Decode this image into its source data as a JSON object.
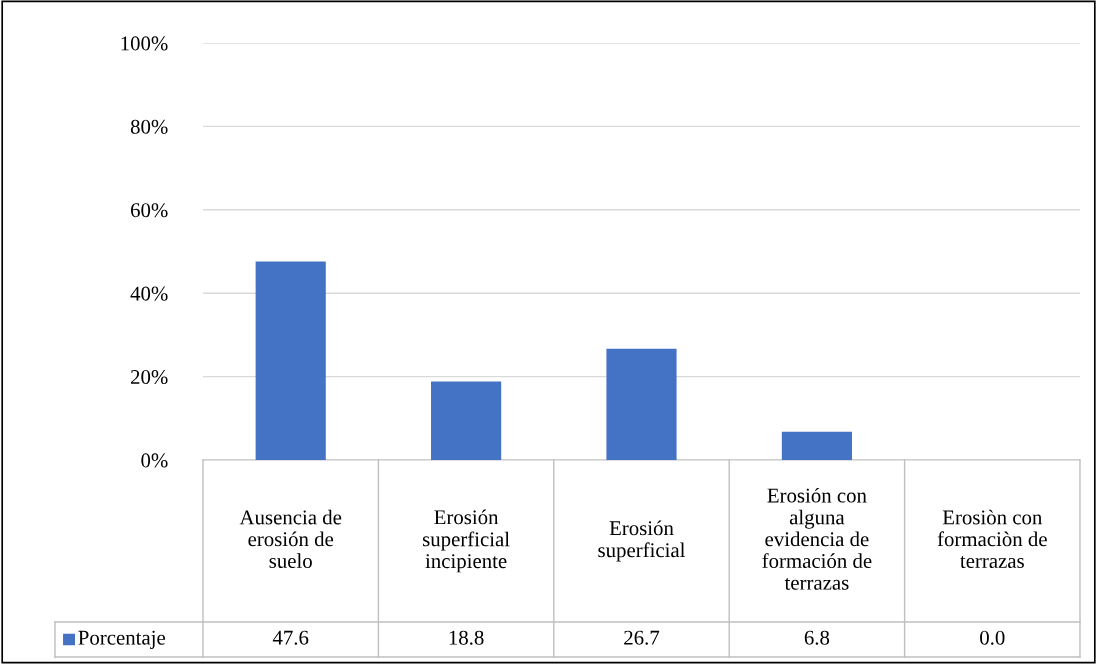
{
  "chart_data": {
    "type": "bar",
    "categories": [
      "Ausencia de erosión de suelo",
      "Erosión superficial incipiente",
      "Erosión superficial",
      "Erosión con alguna evidencia de formación de terrazas",
      "Erosiòn con formaciòn de terrazas"
    ],
    "series": [
      {
        "name": "Porcentaje",
        "color": "#4472c4",
        "values": [
          47.6,
          18.8,
          26.7,
          6.8,
          0.0
        ],
        "value_labels": [
          "47.6",
          "18.8",
          "26.7",
          "6.8",
          "0.0"
        ]
      }
    ],
    "ylim": [
      0,
      100
    ],
    "yticks": [
      {
        "value": 0,
        "label": "0%"
      },
      {
        "value": 20,
        "label": "20%"
      },
      {
        "value": 40,
        "label": "40%"
      },
      {
        "value": 60,
        "label": "60%"
      },
      {
        "value": 80,
        "label": "80%"
      },
      {
        "value": 100,
        "label": "100%"
      }
    ],
    "grid": "y",
    "legend": "bottom"
  }
}
